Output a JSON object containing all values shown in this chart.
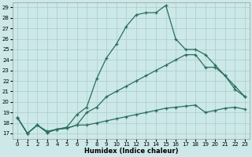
{
  "xlabel": "Humidex (Indice chaleur)",
  "xlim": [
    -0.5,
    23.5
  ],
  "ylim": [
    16.5,
    29.5
  ],
  "yticks": [
    17,
    18,
    19,
    20,
    21,
    22,
    23,
    24,
    25,
    26,
    27,
    28,
    29
  ],
  "xticks": [
    0,
    1,
    2,
    3,
    4,
    5,
    6,
    7,
    8,
    9,
    10,
    11,
    12,
    13,
    14,
    15,
    16,
    17,
    18,
    19,
    20,
    21,
    22,
    23
  ],
  "bg_color": "#cce8e8",
  "grid_color": "#aacccc",
  "line_color": "#2a6e5e",
  "lines": [
    [
      18.5,
      17.0,
      17.8,
      17.1,
      17.4,
      17.5,
      17.8,
      17.8,
      18.0,
      18.2,
      18.4,
      18.6,
      18.8,
      19.0,
      19.2,
      19.4,
      19.5,
      19.6,
      19.7,
      19.0,
      19.2,
      19.4,
      19.5,
      19.3
    ],
    [
      18.5,
      17.0,
      17.8,
      17.1,
      17.4,
      17.5,
      17.8,
      19.0,
      19.5,
      20.5,
      21.0,
      21.5,
      22.0,
      22.5,
      23.0,
      23.5,
      24.0,
      24.5,
      24.5,
      23.3,
      23.3,
      22.5,
      21.5,
      20.5
    ],
    [
      18.5,
      17.0,
      17.8,
      17.2,
      17.4,
      17.6,
      18.8,
      19.5,
      22.2,
      24.2,
      25.5,
      27.2,
      28.3,
      28.5,
      28.5,
      29.2,
      26.0,
      25.0,
      25.0,
      24.5,
      23.5,
      22.5,
      21.2,
      20.5
    ]
  ]
}
